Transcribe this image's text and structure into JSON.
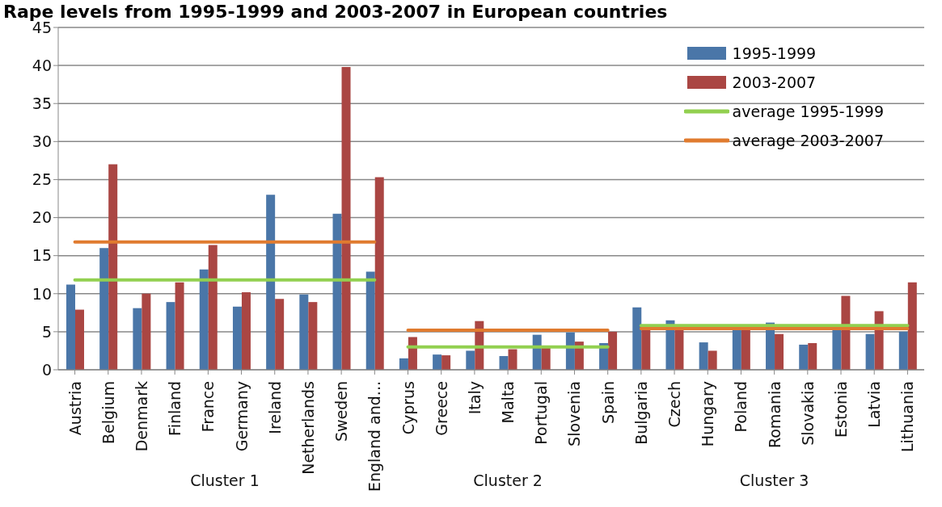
{
  "chart_data": {
    "type": "bar",
    "title": "Rape levels from 1995-1999 and 2003-2007 in European countries",
    "categories": [
      "Austria",
      "Belgium",
      "Denmark",
      "Finland",
      "France",
      "Germany",
      "Ireland",
      "Netherlands",
      "Sweden",
      "England and...",
      "Cyprus",
      "Greece",
      "Italy",
      "Malta",
      "Portugal",
      "Slovenia",
      "Spain",
      "Bulgaria",
      "Czech",
      "Hungary",
      "Poland",
      "Romania",
      "Slovakia",
      "Estonia",
      "Latvia",
      "Lithuania"
    ],
    "series": [
      {
        "name": "1995-1999",
        "color": "#4a76a8",
        "values": [
          11.2,
          16.0,
          8.1,
          8.9,
          13.2,
          8.3,
          23.0,
          9.9,
          20.5,
          12.9,
          1.5,
          2.0,
          2.5,
          1.8,
          4.6,
          4.9,
          3.5,
          8.2,
          6.5,
          3.6,
          5.2,
          6.2,
          3.3,
          5.5,
          4.7,
          5.0
        ]
      },
      {
        "name": "2003-2007",
        "color": "#aa4643",
        "values": [
          7.9,
          27.0,
          10.0,
          11.5,
          16.4,
          10.2,
          9.3,
          8.9,
          39.8,
          25.3,
          4.3,
          1.9,
          6.4,
          2.7,
          3.0,
          3.7,
          5.0,
          5.5,
          5.5,
          2.5,
          5.5,
          4.7,
          3.5,
          9.7,
          7.7,
          11.5
        ]
      },
      {
        "name": "average 1995-1999",
        "type": "line",
        "color": "#92d050",
        "values": [
          11.8,
          11.8,
          11.8,
          11.8,
          11.8,
          11.8,
          11.8,
          11.8,
          11.8,
          11.8,
          null,
          null,
          null,
          null,
          null,
          null,
          null,
          null,
          null,
          null,
          null,
          null,
          null,
          null,
          null,
          null
        ]
      },
      {
        "name": "average 2003-2007",
        "type": "line",
        "color": "#e07b2f",
        "values": [
          16.8,
          16.8,
          16.8,
          16.8,
          16.8,
          16.8,
          16.8,
          16.8,
          16.8,
          16.8,
          null,
          null,
          null,
          null,
          null,
          null,
          null,
          null,
          null,
          null,
          null,
          null,
          null,
          null,
          null,
          null
        ]
      },
      {
        "type": "line",
        "color": "#92d050",
        "values": [
          null,
          null,
          null,
          null,
          null,
          null,
          null,
          null,
          null,
          null,
          3.0,
          3.0,
          3.0,
          3.0,
          3.0,
          3.0,
          3.0,
          null,
          null,
          null,
          null,
          null,
          null,
          null,
          null,
          null
        ]
      },
      {
        "type": "line",
        "color": "#e07b2f",
        "values": [
          null,
          null,
          null,
          null,
          null,
          null,
          null,
          null,
          null,
          null,
          5.2,
          5.2,
          5.2,
          5.2,
          5.2,
          5.2,
          5.2,
          null,
          null,
          null,
          null,
          null,
          null,
          null,
          null,
          null
        ]
      },
      {
        "type": "line",
        "color": "#92d050",
        "values": [
          null,
          null,
          null,
          null,
          null,
          null,
          null,
          null,
          null,
          null,
          null,
          null,
          null,
          null,
          null,
          null,
          null,
          5.8,
          5.8,
          5.8,
          5.8,
          5.8,
          5.8,
          5.8,
          5.8,
          5.8
        ]
      },
      {
        "type": "line",
        "color": "#e07b2f",
        "values": [
          null,
          null,
          null,
          null,
          null,
          null,
          null,
          null,
          null,
          null,
          null,
          null,
          null,
          null,
          null,
          null,
          null,
          5.4,
          5.4,
          5.4,
          5.4,
          5.4,
          5.4,
          5.4,
          5.4,
          5.4
        ]
      }
    ],
    "annotations": [
      "Cluster 1",
      "Cluster 2",
      "Cluster 3"
    ],
    "ylim": [
      0,
      45
    ],
    "yticks": [
      0,
      5,
      10,
      15,
      20,
      25,
      30,
      35,
      40,
      45
    ],
    "grid": "y",
    "legend": "top right",
    "marker": "none"
  }
}
